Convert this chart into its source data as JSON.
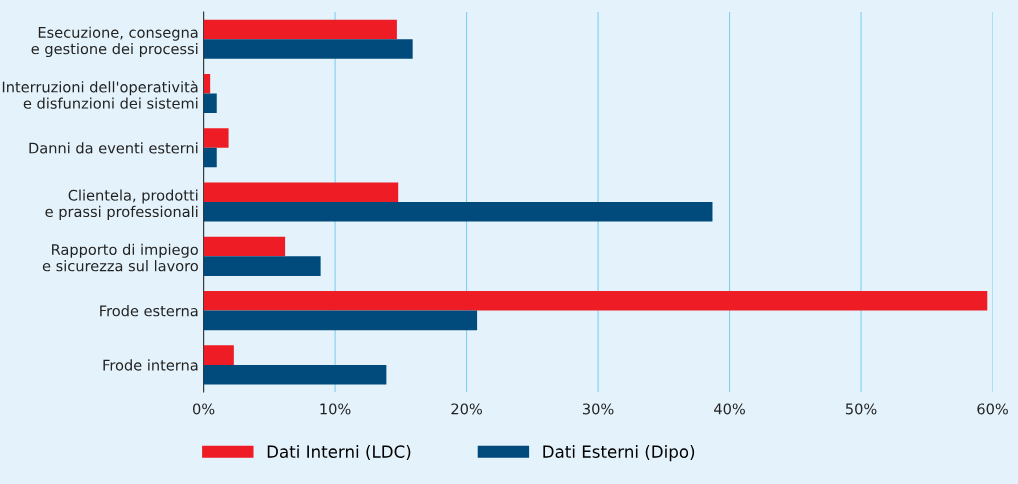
{
  "chart_data": {
    "type": "bar",
    "orientation": "horizontal",
    "categories": [
      "Esecuzione, consegna\ne gestione dei processi",
      "Interruzioni dell'operatività\ne disfunzioni dei sistemi",
      "Danni da eventi esterni",
      "Clientela, prodotti\ne prassi professionali",
      "Rapporto di impiego\ne sicurezza sul lavoro",
      "Frode esterna",
      "Frode interna"
    ],
    "series": [
      {
        "name": "Dati Interni (LDC)",
        "color": "#ee1c25",
        "values": [
          14.7,
          0.5,
          1.9,
          14.8,
          6.2,
          59.6,
          2.3
        ]
      },
      {
        "name": "Dati Esterni (Dipo)",
        "color": "#004a7c",
        "values": [
          15.9,
          1.0,
          1.0,
          38.7,
          8.9,
          20.8,
          13.9
        ]
      }
    ],
    "xlim": [
      0,
      60
    ],
    "xticks": [
      {
        "value": 0,
        "label": "0%"
      },
      {
        "value": 10,
        "label": "10%"
      },
      {
        "value": 20,
        "label": "20%"
      },
      {
        "value": 30,
        "label": "30%"
      },
      {
        "value": 40,
        "label": "40%"
      },
      {
        "value": 50,
        "label": "50%"
      },
      {
        "value": 60,
        "label": "60%"
      }
    ],
    "grid": "x",
    "legend": "bottom left"
  }
}
